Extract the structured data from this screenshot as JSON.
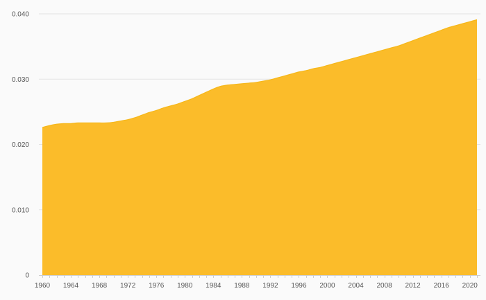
{
  "chart_data": {
    "type": "area",
    "title": "",
    "xlabel": "",
    "ylabel": "",
    "x": [
      1960,
      1961,
      1962,
      1963,
      1964,
      1965,
      1966,
      1967,
      1968,
      1969,
      1970,
      1971,
      1972,
      1973,
      1974,
      1975,
      1976,
      1977,
      1978,
      1979,
      1980,
      1981,
      1982,
      1983,
      1984,
      1985,
      1986,
      1987,
      1988,
      1989,
      1990,
      1991,
      1992,
      1993,
      1994,
      1995,
      1996,
      1997,
      1998,
      1999,
      2000,
      2001,
      2002,
      2003,
      2004,
      2005,
      2006,
      2007,
      2008,
      2009,
      2010,
      2011,
      2012,
      2013,
      2014,
      2015,
      2016,
      2017,
      2018,
      2019,
      2020,
      2021
    ],
    "series": [
      {
        "values": [
          0.0226,
          0.0229,
          0.0231,
          0.0232,
          0.0232,
          0.0233,
          0.0233,
          0.0233,
          0.0233,
          0.0233,
          0.0234,
          0.0236,
          0.0238,
          0.0241,
          0.0245,
          0.0249,
          0.0252,
          0.0256,
          0.0259,
          0.0262,
          0.0266,
          0.027,
          0.0275,
          0.028,
          0.0285,
          0.0289,
          0.0291,
          0.0292,
          0.0293,
          0.0294,
          0.0295,
          0.0297,
          0.0299,
          0.0302,
          0.0305,
          0.0308,
          0.0311,
          0.0313,
          0.0316,
          0.0318,
          0.0321,
          0.0324,
          0.0327,
          0.033,
          0.0333,
          0.0336,
          0.0339,
          0.0342,
          0.0345,
          0.0348,
          0.0351,
          0.0355,
          0.0359,
          0.0363,
          0.0367,
          0.0371,
          0.0375,
          0.0379,
          0.0382,
          0.0385,
          0.0388,
          0.0391
        ]
      }
    ],
    "x_ticks": [
      1960,
      1964,
      1968,
      1972,
      1976,
      1980,
      1984,
      1988,
      1992,
      1996,
      2000,
      2004,
      2008,
      2012,
      2016,
      2020
    ],
    "y_ticks": [
      {
        "value": 0,
        "label": "0"
      },
      {
        "value": 0.01,
        "label": "0.010"
      },
      {
        "value": 0.02,
        "label": "0.020"
      },
      {
        "value": 0.03,
        "label": "0.030"
      },
      {
        "value": 0.04,
        "label": "0.040"
      }
    ],
    "xlim": [
      1960,
      2021
    ],
    "ylim": [
      0,
      0.04
    ],
    "grid": true,
    "legend": "none",
    "colors": {
      "area_fill": "#fbbc2a",
      "area_stroke": "#f6b719",
      "gridline": "#e3e3e3",
      "axis": "#cccccc",
      "tick_text": "#555555",
      "background": "#fafafa"
    }
  }
}
